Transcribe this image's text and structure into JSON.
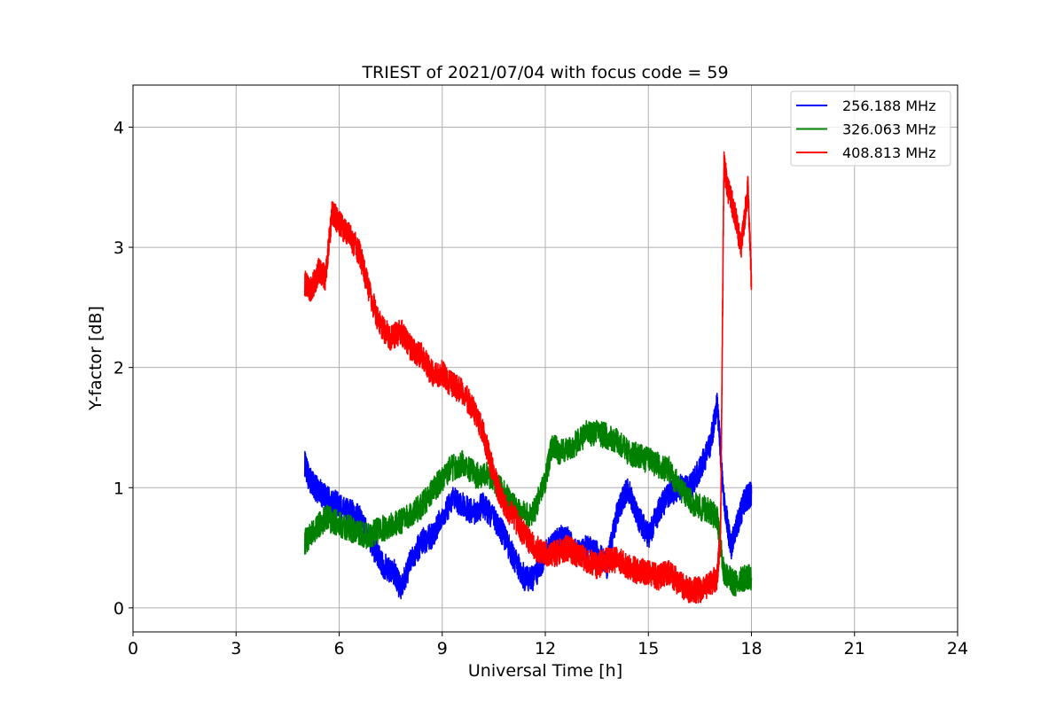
{
  "chart_data": {
    "type": "line",
    "title": "TRIEST of 2021/07/04 with focus code = 59",
    "xlabel": "Universal Time [h]",
    "ylabel": "Y-factor [dB]",
    "xlim": [
      0,
      24
    ],
    "ylim": [
      -0.2,
      4.35
    ],
    "xticks": [
      0,
      3,
      6,
      9,
      12,
      15,
      18,
      21,
      24
    ],
    "yticks": [
      0,
      1,
      2,
      3,
      4
    ],
    "grid": true,
    "legend_position": "top-right",
    "series": [
      {
        "name": "256.188 MHz",
        "color": "#0000ff",
        "x": [
          5.0,
          5.1,
          5.3,
          5.5,
          5.7,
          6.0,
          6.3,
          6.6,
          7.0,
          7.3,
          7.6,
          7.8,
          8.1,
          8.4,
          8.7,
          9.0,
          9.3,
          9.6,
          9.9,
          10.2,
          10.5,
          10.8,
          11.1,
          11.4,
          11.7,
          12.0,
          12.3,
          12.6,
          12.9,
          13.2,
          13.5,
          13.8,
          14.1,
          14.4,
          14.7,
          15.0,
          15.3,
          15.6,
          15.9,
          16.2,
          16.5,
          16.8,
          17.0,
          17.2,
          17.4,
          17.6,
          17.8,
          18.0
        ],
        "y": [
          1.2,
          1.1,
          1.0,
          0.95,
          0.9,
          0.85,
          0.8,
          0.75,
          0.5,
          0.35,
          0.3,
          0.15,
          0.4,
          0.55,
          0.6,
          0.75,
          0.9,
          0.85,
          0.8,
          0.85,
          0.75,
          0.6,
          0.4,
          0.25,
          0.25,
          0.45,
          0.55,
          0.6,
          0.45,
          0.5,
          0.45,
          0.35,
          0.8,
          1.0,
          0.75,
          0.6,
          0.8,
          0.95,
          1.0,
          1.0,
          1.15,
          1.35,
          1.7,
          0.9,
          0.5,
          0.7,
          0.9,
          0.95
        ]
      },
      {
        "name": "326.063 MHz",
        "color": "#008000",
        "x": [
          5.0,
          5.3,
          5.6,
          6.0,
          6.4,
          6.8,
          7.2,
          7.6,
          8.0,
          8.4,
          8.8,
          9.2,
          9.6,
          10.0,
          10.4,
          10.8,
          11.2,
          11.6,
          12.0,
          12.2,
          12.4,
          12.8,
          13.2,
          13.6,
          14.0,
          14.4,
          14.8,
          15.2,
          15.6,
          16.0,
          16.4,
          16.8,
          17.0,
          17.2,
          17.5,
          17.8,
          18.0
        ],
        "y": [
          0.55,
          0.65,
          0.75,
          0.7,
          0.65,
          0.6,
          0.65,
          0.7,
          0.75,
          0.85,
          1.0,
          1.15,
          1.2,
          1.1,
          1.1,
          0.95,
          0.8,
          0.75,
          1.05,
          1.35,
          1.3,
          1.35,
          1.45,
          1.45,
          1.4,
          1.3,
          1.25,
          1.2,
          1.15,
          0.95,
          0.85,
          0.8,
          0.75,
          0.3,
          0.2,
          0.25,
          0.25
        ]
      },
      {
        "name": "408.813 MHz",
        "color": "#ff0000",
        "x": [
          5.0,
          5.2,
          5.4,
          5.6,
          5.8,
          6.0,
          6.3,
          6.6,
          6.9,
          7.2,
          7.5,
          7.8,
          8.1,
          8.4,
          8.7,
          9.0,
          9.3,
          9.6,
          9.9,
          10.2,
          10.5,
          10.8,
          11.1,
          11.4,
          11.7,
          12.0,
          12.3,
          12.6,
          12.9,
          13.2,
          13.5,
          13.8,
          14.1,
          14.4,
          14.7,
          15.0,
          15.3,
          15.6,
          15.9,
          16.2,
          16.5,
          16.8,
          17.0,
          17.1,
          17.2,
          17.3,
          17.5,
          17.7,
          17.9,
          18.0
        ],
        "y": [
          2.7,
          2.65,
          2.8,
          2.75,
          3.3,
          3.2,
          3.1,
          2.95,
          2.6,
          2.35,
          2.25,
          2.3,
          2.15,
          2.1,
          1.95,
          1.95,
          1.85,
          1.8,
          1.65,
          1.45,
          1.1,
          0.85,
          0.75,
          0.6,
          0.5,
          0.45,
          0.45,
          0.5,
          0.45,
          0.4,
          0.35,
          0.4,
          0.4,
          0.35,
          0.3,
          0.3,
          0.25,
          0.3,
          0.2,
          0.15,
          0.15,
          0.2,
          0.25,
          0.6,
          3.7,
          3.5,
          3.3,
          3.0,
          3.5,
          2.7
        ]
      }
    ]
  }
}
